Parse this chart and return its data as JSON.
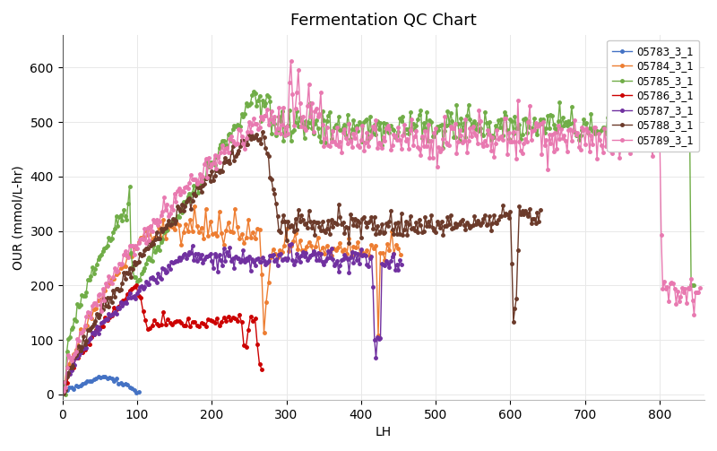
{
  "title": "Fermentation QC Chart",
  "xlabel": "LH",
  "ylabel": "OUR (mmol/L-hr)",
  "xlim": [
    0,
    860
  ],
  "ylim": [
    -10,
    660
  ],
  "xticks": [
    0,
    100,
    200,
    300,
    400,
    500,
    600,
    700,
    800
  ],
  "yticks": [
    0,
    100,
    200,
    300,
    400,
    500,
    600
  ],
  "background_color": "#ffffff",
  "grid_color": "#e8e8e8",
  "series": [
    {
      "label": "05783_3_1",
      "color": "#4472C4"
    },
    {
      "label": "05784_3_1",
      "color": "#ED7D31"
    },
    {
      "label": "05785_3_1",
      "color": "#70AD47"
    },
    {
      "label": "05786_3_1",
      "color": "#CC0000"
    },
    {
      "label": "05787_3_1",
      "color": "#7030A0"
    },
    {
      "label": "05788_3_1",
      "color": "#6B3A2A"
    },
    {
      "label": "05789_3_1",
      "color": "#E879B0"
    }
  ],
  "title_fontsize": 13,
  "axis_fontsize": 10,
  "legend_fontsize": 8.5,
  "marker_size": 2.5,
  "line_width": 1.0
}
